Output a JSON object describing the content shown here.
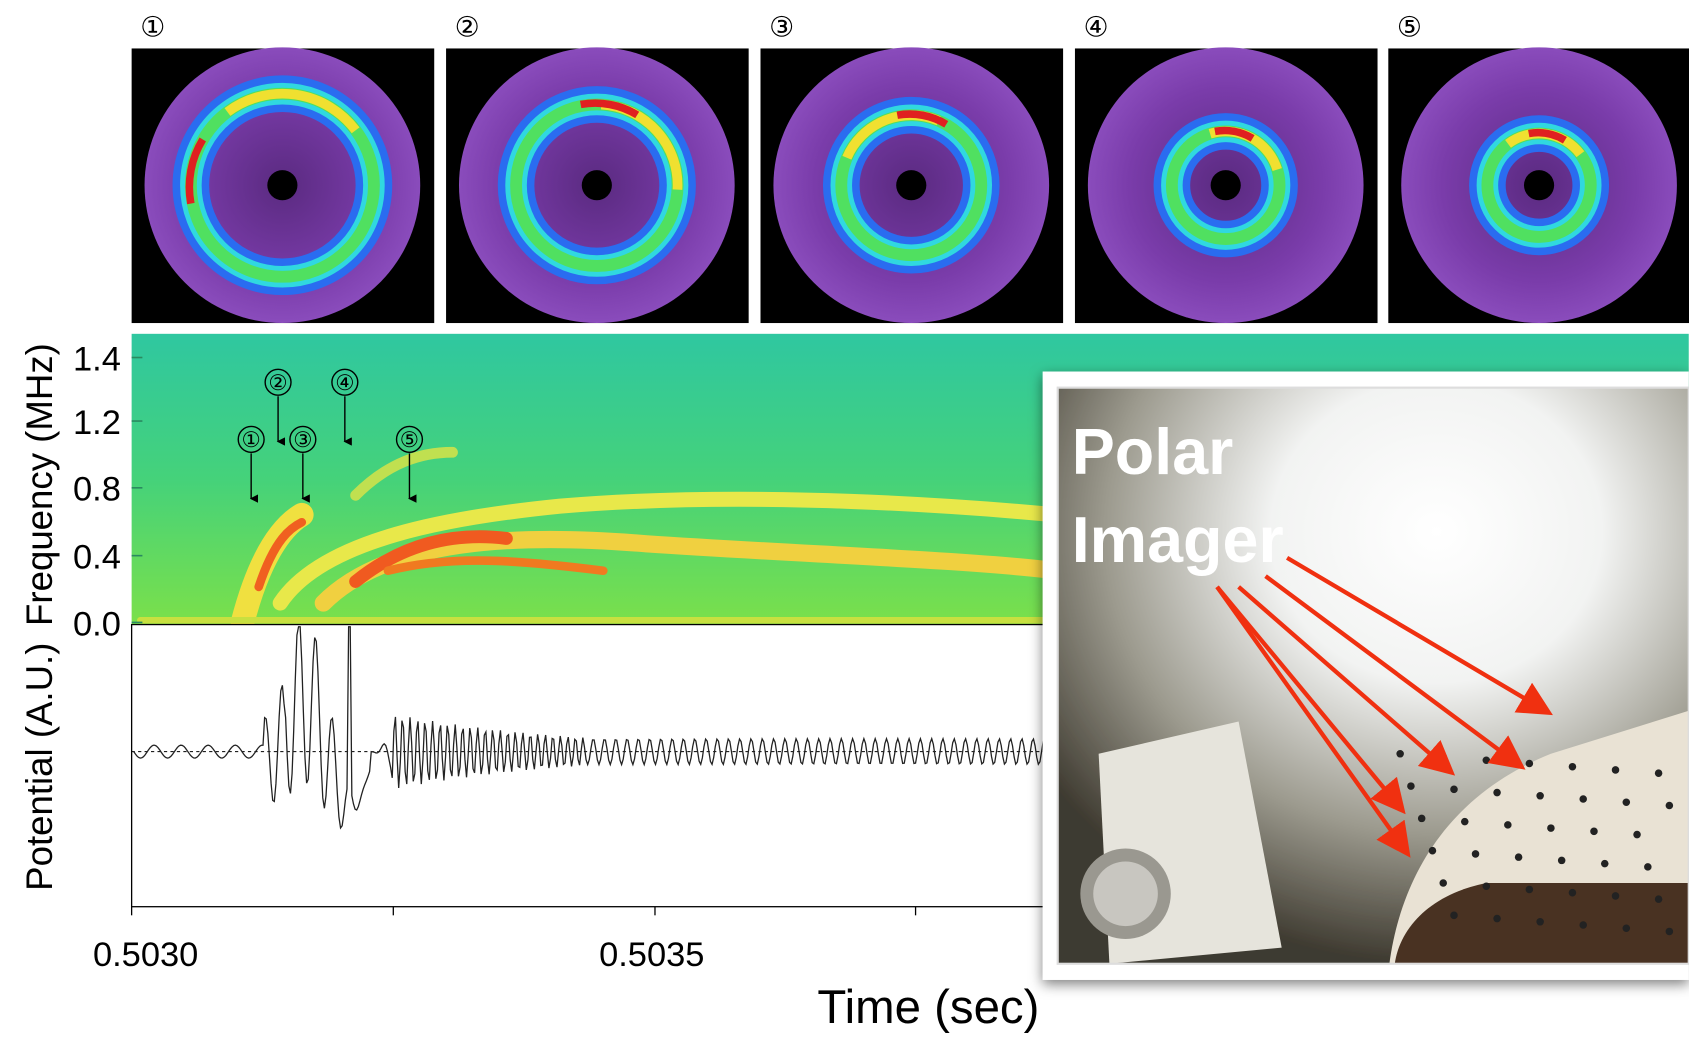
{
  "panels": [
    {
      "label": "①"
    },
    {
      "label": "②"
    },
    {
      "label": "③"
    },
    {
      "label": "④"
    },
    {
      "label": "⑤"
    }
  ],
  "spectrogram": {
    "y_label": "Frequency (MHz)",
    "y_ticks": [
      "1.4",
      "1.2",
      "0.8",
      "0.4",
      "0.0"
    ],
    "markers": [
      "①",
      "②",
      "③",
      "④",
      "⑤"
    ]
  },
  "waveform": {
    "y_label": "Potential (A.U.)"
  },
  "x_axis": {
    "ticks": [
      "0.5030",
      "0.5035"
    ],
    "label": "Time (sec)"
  },
  "inset": {
    "title_lines": [
      "Polar",
      "Imager"
    ]
  }
}
